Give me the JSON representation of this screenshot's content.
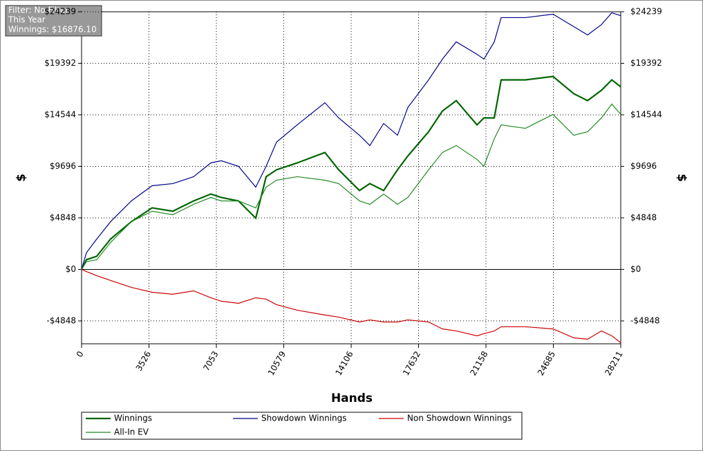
{
  "info": [
    "Filter: No Filter",
    "This Year",
    "Winnings: $16876.10"
  ],
  "chart_data": {
    "type": "line",
    "xlabel": "Hands",
    "ylabel": "$",
    "y2label": "$",
    "x": [
      0,
      253,
      796,
      1519,
      2604,
      3689,
      4774,
      5860,
      6764,
      7306,
      8211,
      9115,
      9657,
      10200,
      11285,
      12732,
      13455,
      14540,
      15083,
      15806,
      16530,
      17072,
      18157,
      18880,
      19604,
      20689,
      21051,
      21594,
      21955,
      23221,
      24668,
      25753,
      26477,
      27200,
      27743,
      28211
    ],
    "series": [
      {
        "name": "Winnings",
        "color": "#006400",
        "values": [
          0,
          910,
          1240,
          2860,
          4490,
          5790,
          5470,
          6440,
          7090,
          6770,
          6440,
          4820,
          8720,
          9370,
          10020,
          11000,
          9370,
          7420,
          8070,
          7420,
          9370,
          10670,
          12950,
          14900,
          15880,
          13600,
          14250,
          14250,
          17830,
          17830,
          18150,
          16530,
          15880,
          16850,
          17830,
          17180
        ]
      },
      {
        "name": "Showdown Winnings",
        "color": "#00008b",
        "values": [
          0,
          1560,
          2860,
          4490,
          6440,
          7870,
          8070,
          8720,
          10020,
          10220,
          9700,
          7740,
          9700,
          11970,
          13600,
          15680,
          14250,
          12620,
          11650,
          13730,
          12620,
          15230,
          17830,
          19780,
          21410,
          20240,
          19780,
          21410,
          23690,
          23690,
          24010,
          22840,
          22060,
          23030,
          24140,
          23880
        ]
      },
      {
        "name": "Non Showdown Winnings",
        "color": "#cc0000",
        "values": [
          0,
          -200,
          -590,
          -1040,
          -1690,
          -2150,
          -2340,
          -2020,
          -2670,
          -2990,
          -3190,
          -2670,
          -2800,
          -3320,
          -3840,
          -4290,
          -4490,
          -4950,
          -4750,
          -4950,
          -4950,
          -4750,
          -4950,
          -5600,
          -5790,
          -6250,
          -6050,
          -5790,
          -5400,
          -5400,
          -5600,
          -6440,
          -6570,
          -5790,
          -6250,
          -6900
        ]
      },
      {
        "name": "All-In EV",
        "color": "#228b22",
        "values": [
          0,
          720,
          910,
          2540,
          4490,
          5470,
          5140,
          6120,
          6770,
          6440,
          6440,
          5790,
          7740,
          8390,
          8720,
          8390,
          8070,
          6440,
          6120,
          7090,
          6120,
          6770,
          9370,
          11000,
          11650,
          10350,
          9700,
          12300,
          13600,
          13270,
          14580,
          12620,
          12950,
          14250,
          15550,
          14580
        ]
      }
    ],
    "xlim": [
      0,
      28211
    ],
    "xticks": [
      0,
      3526,
      7053,
      10579,
      14106,
      17632,
      21158,
      24685,
      28211
    ],
    "ylim": [
      -7000,
      24239
    ],
    "yticks": [
      {
        "value": -4848,
        "label": "-$4848"
      },
      {
        "value": 0,
        "label": "$0"
      },
      {
        "value": 4848,
        "label": "$4848"
      },
      {
        "value": 9696,
        "label": "$9696"
      },
      {
        "value": 14544,
        "label": "$14544"
      },
      {
        "value": 19392,
        "label": "$19392"
      },
      {
        "value": 24239,
        "label": "$24239"
      }
    ],
    "y2lim": [
      -7000,
      24239
    ],
    "y2ticks": [
      {
        "value": -4848,
        "label": "-$4848"
      },
      {
        "value": 0,
        "label": "$0"
      },
      {
        "value": 4848,
        "label": "$4848"
      },
      {
        "value": 9696,
        "label": "$9696"
      },
      {
        "value": 14544,
        "label": "$14544"
      },
      {
        "value": 19392,
        "label": "$19392"
      },
      {
        "value": 24239,
        "label": "$24239"
      }
    ],
    "grid": true,
    "legend": "bottom"
  }
}
